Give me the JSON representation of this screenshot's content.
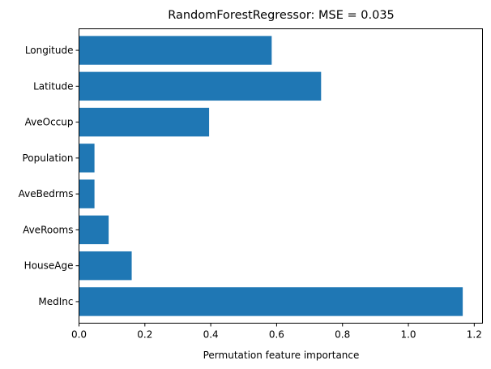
{
  "chart_data": {
    "type": "bar",
    "orientation": "horizontal",
    "title": "RandomForestRegressor: MSE = 0.035",
    "xlabel": "Permutation feature importance",
    "ylabel": "",
    "categories": [
      "MedInc",
      "HouseAge",
      "AveRooms",
      "AveBedrms",
      "Population",
      "AveOccup",
      "Latitude",
      "Longitude"
    ],
    "values": [
      1.165,
      0.16,
      0.09,
      0.047,
      0.047,
      0.395,
      0.735,
      0.585
    ],
    "xlim": [
      0,
      1.225
    ],
    "xticks": [
      "0.0",
      "0.2",
      "0.4",
      "0.6",
      "0.8",
      "1.0",
      "1.2"
    ],
    "bar_color": "#1f77b4",
    "grid": false
  }
}
